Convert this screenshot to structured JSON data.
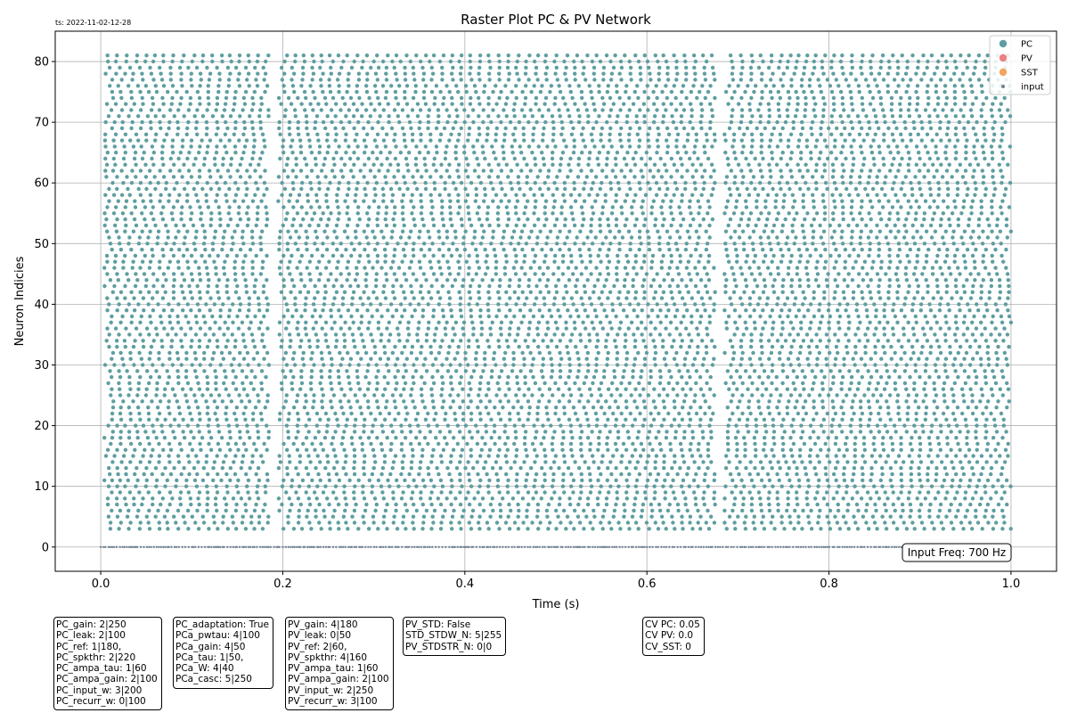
{
  "timestamp": "ts: 2022-11-02-12-28",
  "chart_data": {
    "type": "scatter",
    "title": "Raster Plot PC & PV Network",
    "xlabel": "Time (s)",
    "ylabel": "Neuron Indicies",
    "xlim": [
      -0.05,
      1.05
    ],
    "ylim": [
      -4,
      85
    ],
    "xticks": [
      "0.0",
      "0.2",
      "0.4",
      "0.6",
      "0.8",
      "1.0"
    ],
    "xtick_values": [
      0,
      0.2,
      0.4,
      0.6,
      0.8,
      1.0
    ],
    "yticks": [
      "0",
      "10",
      "20",
      "30",
      "40",
      "50",
      "60",
      "70",
      "80"
    ],
    "ytick_values": [
      0,
      10,
      20,
      30,
      40,
      50,
      60,
      70,
      80
    ],
    "grid": true,
    "legend_position": "top-right",
    "legend": [
      {
        "name": "PC",
        "color": "#5f9ea0",
        "marker": "large-dot"
      },
      {
        "name": "PV",
        "color": "#f08080",
        "marker": "large-dot"
      },
      {
        "name": "SST",
        "color": "#f4a460",
        "marker": "large-dot"
      },
      {
        "name": "input",
        "color": "#708090",
        "marker": "small-dot"
      }
    ],
    "series": [
      {
        "name": "PC",
        "color": "#5f9ea0",
        "neuron_range": [
          3,
          81
        ],
        "time_range": [
          0.0,
          1.0
        ],
        "silent_intervals": [
          [
            0.185,
            0.195
          ],
          [
            0.675,
            0.685
          ]
        ]
      },
      {
        "name": "input",
        "color": "#708090",
        "neuron_index": 0,
        "time_range": [
          0.0,
          1.0
        ]
      }
    ],
    "annotation": "Input Freq: 700 Hz"
  },
  "param_boxes": [
    {
      "lines": [
        "PC_gain: 2|250",
        "PC_leak: 2|100",
        "PC_ref: 1|180,",
        "PC_spkthr: 2|220",
        "PC_ampa_tau: 1|60",
        "PC_ampa_gain: 2|100",
        "PC_input_w: 3|200",
        "PC_recurr_w: 0|100"
      ]
    },
    {
      "lines": [
        "PC_adaptation: True",
        "PCa_pwtau: 4|100",
        "PCa_gain: 4|50",
        "PCa_tau: 1|50,",
        "PCa_W: 4|40",
        "PCa_casc: 5|250"
      ]
    },
    {
      "lines": [
        "PV_gain: 4|180",
        "PV_leak: 0|50",
        "PV_ref: 2|60,",
        "PV_spkthr: 4|160",
        "PV_ampa_tau: 1|60",
        "PV_ampa_gain: 2|100",
        "PV_input_w: 2|250",
        "PV_recurr_w: 3|100"
      ]
    },
    {
      "lines": [
        "PV_STD: False",
        "STD_STDW_N: 5|255",
        "PV_STDSTR_N: 0|0"
      ]
    },
    {
      "lines": [
        "CV PC: 0.05",
        "CV PV: 0.0",
        "CV_SST: 0"
      ]
    }
  ]
}
